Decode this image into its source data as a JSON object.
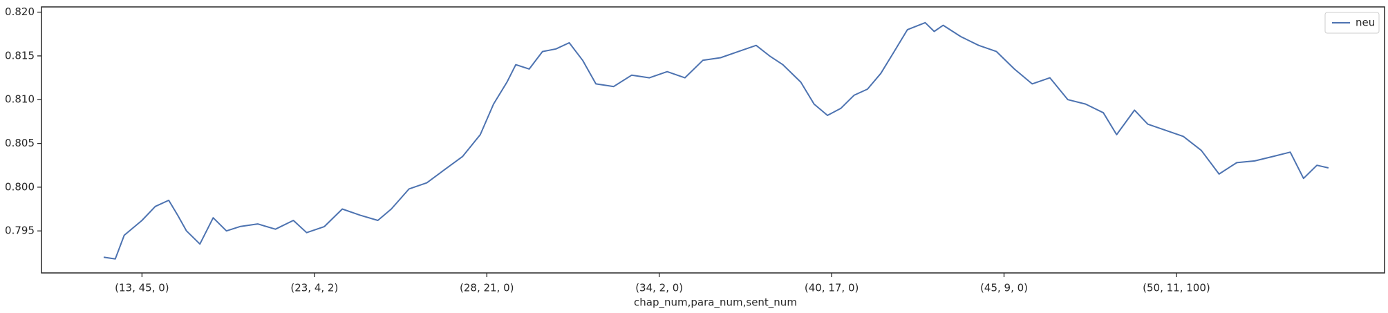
{
  "chart_data": {
    "type": "line",
    "xlabel": "chap_num,para_num,sent_num",
    "x": [
      28,
      95,
      147,
      250,
      327,
      405,
      457,
      508,
      586,
      663,
      740,
      818,
      921,
      1024,
      1128,
      1205,
      1308,
      1412,
      1515,
      1618,
      1696,
      1799,
      1902,
      2005,
      2109,
      2212,
      2289,
      2367,
      2418,
      2496,
      2573,
      2651,
      2728,
      2806,
      2883,
      2986,
      3090,
      3193,
      3296,
      3399,
      3503,
      3606,
      3709,
      3812,
      3890,
      3967,
      4071,
      4148,
      4226,
      4303,
      4380,
      4458,
      4535,
      4613,
      4690,
      4793,
      4845,
      4897,
      5000,
      5103,
      5206,
      5310,
      5413,
      5516,
      5620,
      5723,
      5826,
      5903,
      6007,
      6084,
      6187,
      6290,
      6394,
      6497,
      6600,
      6704,
      6807,
      6910,
      6987,
      7065,
      7132
    ],
    "series": [
      {
        "name": "neu",
        "color": "#4c72b0",
        "values": [
          0.792,
          0.7918,
          0.7945,
          0.7962,
          0.7978,
          0.7985,
          0.7968,
          0.795,
          0.7935,
          0.7965,
          0.795,
          0.7955,
          0.7958,
          0.7952,
          0.7962,
          0.7948,
          0.7955,
          0.7975,
          0.7968,
          0.7962,
          0.7975,
          0.7998,
          0.8005,
          0.802,
          0.8035,
          0.806,
          0.8095,
          0.812,
          0.814,
          0.8135,
          0.8155,
          0.8158,
          0.8165,
          0.8145,
          0.8118,
          0.8115,
          0.8128,
          0.8125,
          0.8132,
          0.8125,
          0.8145,
          0.8148,
          0.8155,
          0.8162,
          0.815,
          0.814,
          0.812,
          0.8095,
          0.8082,
          0.809,
          0.8105,
          0.8112,
          0.813,
          0.8155,
          0.818,
          0.8188,
          0.8178,
          0.8185,
          0.8172,
          0.8162,
          0.8155,
          0.8135,
          0.8118,
          0.8125,
          0.81,
          0.8095,
          0.8085,
          0.806,
          0.8088,
          0.8072,
          0.8065,
          0.8058,
          0.8042,
          0.8015,
          0.8028,
          0.803,
          0.8035,
          0.804,
          0.801,
          0.8025,
          0.8022
        ]
      }
    ],
    "xlim": [
      -333,
      7457
    ],
    "xticks": [
      {
        "value": 250,
        "label": "(13, 45, 0)"
      },
      {
        "value": 1250,
        "label": "(23, 4, 2)"
      },
      {
        "value": 2250,
        "label": "(28, 21, 0)"
      },
      {
        "value": 3250,
        "label": "(34, 2, 0)"
      },
      {
        "value": 4250,
        "label": "(40, 17, 0)"
      },
      {
        "value": 5250,
        "label": "(45, 9, 0)"
      },
      {
        "value": 6250,
        "label": "(50, 11, 100)"
      }
    ],
    "ylim": [
      0.7902,
      0.8206
    ],
    "yticks": [
      {
        "value": 0.795,
        "label": "0.795"
      },
      {
        "value": 0.8,
        "label": "0.800"
      },
      {
        "value": 0.805,
        "label": "0.805"
      },
      {
        "value": 0.81,
        "label": "0.810"
      },
      {
        "value": 0.815,
        "label": "0.815"
      },
      {
        "value": 0.82,
        "label": "0.820"
      }
    ],
    "legend": "upper right"
  }
}
